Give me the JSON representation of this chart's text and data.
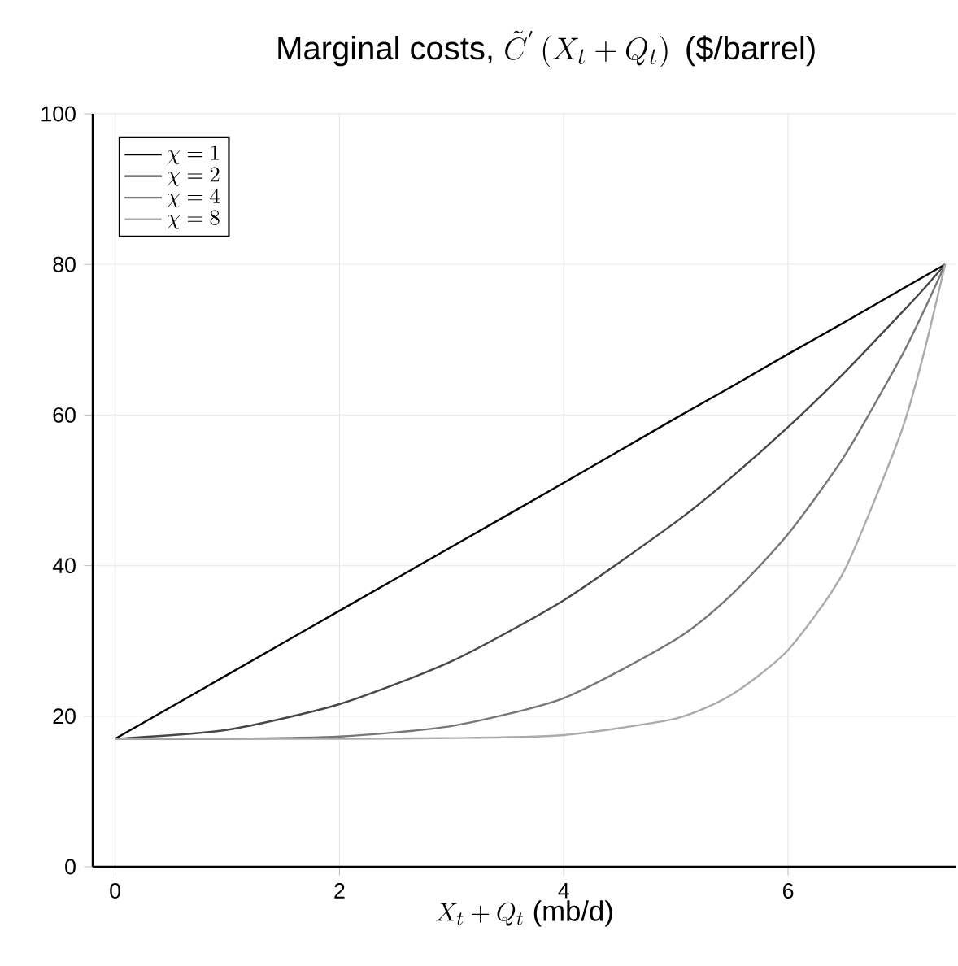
{
  "chart_data": {
    "type": "line",
    "title": "\\mbox{Marginal costs, }\\tilde{C}^{'}\\left(X_t+Q_t\\right)\\mbox{ (\\$/barrel)}",
    "xlabel": "X_t+Q_t\\mbox{ (mb/d)}",
    "x": [
      0,
      1,
      2,
      3,
      4,
      5,
      5.5,
      6,
      6.5,
      7,
      7.2,
      7.4
    ],
    "series": [
      {
        "name": "\\chi = 1",
        "color": "#000000",
        "values": [
          17,
          25.5,
          34,
          42.5,
          51,
          59.6,
          63.8,
          68.1,
          72.3,
          76.6,
          78.3,
          80
        ]
      },
      {
        "name": "\\chi = 2",
        "color": "#474747",
        "values": [
          17,
          18.2,
          21.6,
          27.3,
          35.4,
          45.8,
          51.8,
          58.4,
          65.6,
          73.4,
          76.6,
          80
        ]
      },
      {
        "name": "\\chi = 4",
        "color": "#777777",
        "values": [
          17,
          17,
          17.3,
          18.7,
          22.4,
          30.2,
          36.2,
          44.2,
          54.5,
          67.5,
          73.5,
          80
        ]
      },
      {
        "name": "\\chi = 8",
        "color": "#ababab",
        "values": [
          17,
          17,
          17,
          17.1,
          17.5,
          19.7,
          22.9,
          28.8,
          39.3,
          57.4,
          67.6,
          80
        ]
      }
    ],
    "xlim": [
      -0.2,
      7.5
    ],
    "ylim": [
      0,
      100
    ],
    "xticks": [
      0,
      2,
      4,
      6
    ],
    "yticks": [
      0,
      20,
      40,
      60,
      80,
      100
    ],
    "grid": true,
    "legend": "top left"
  }
}
